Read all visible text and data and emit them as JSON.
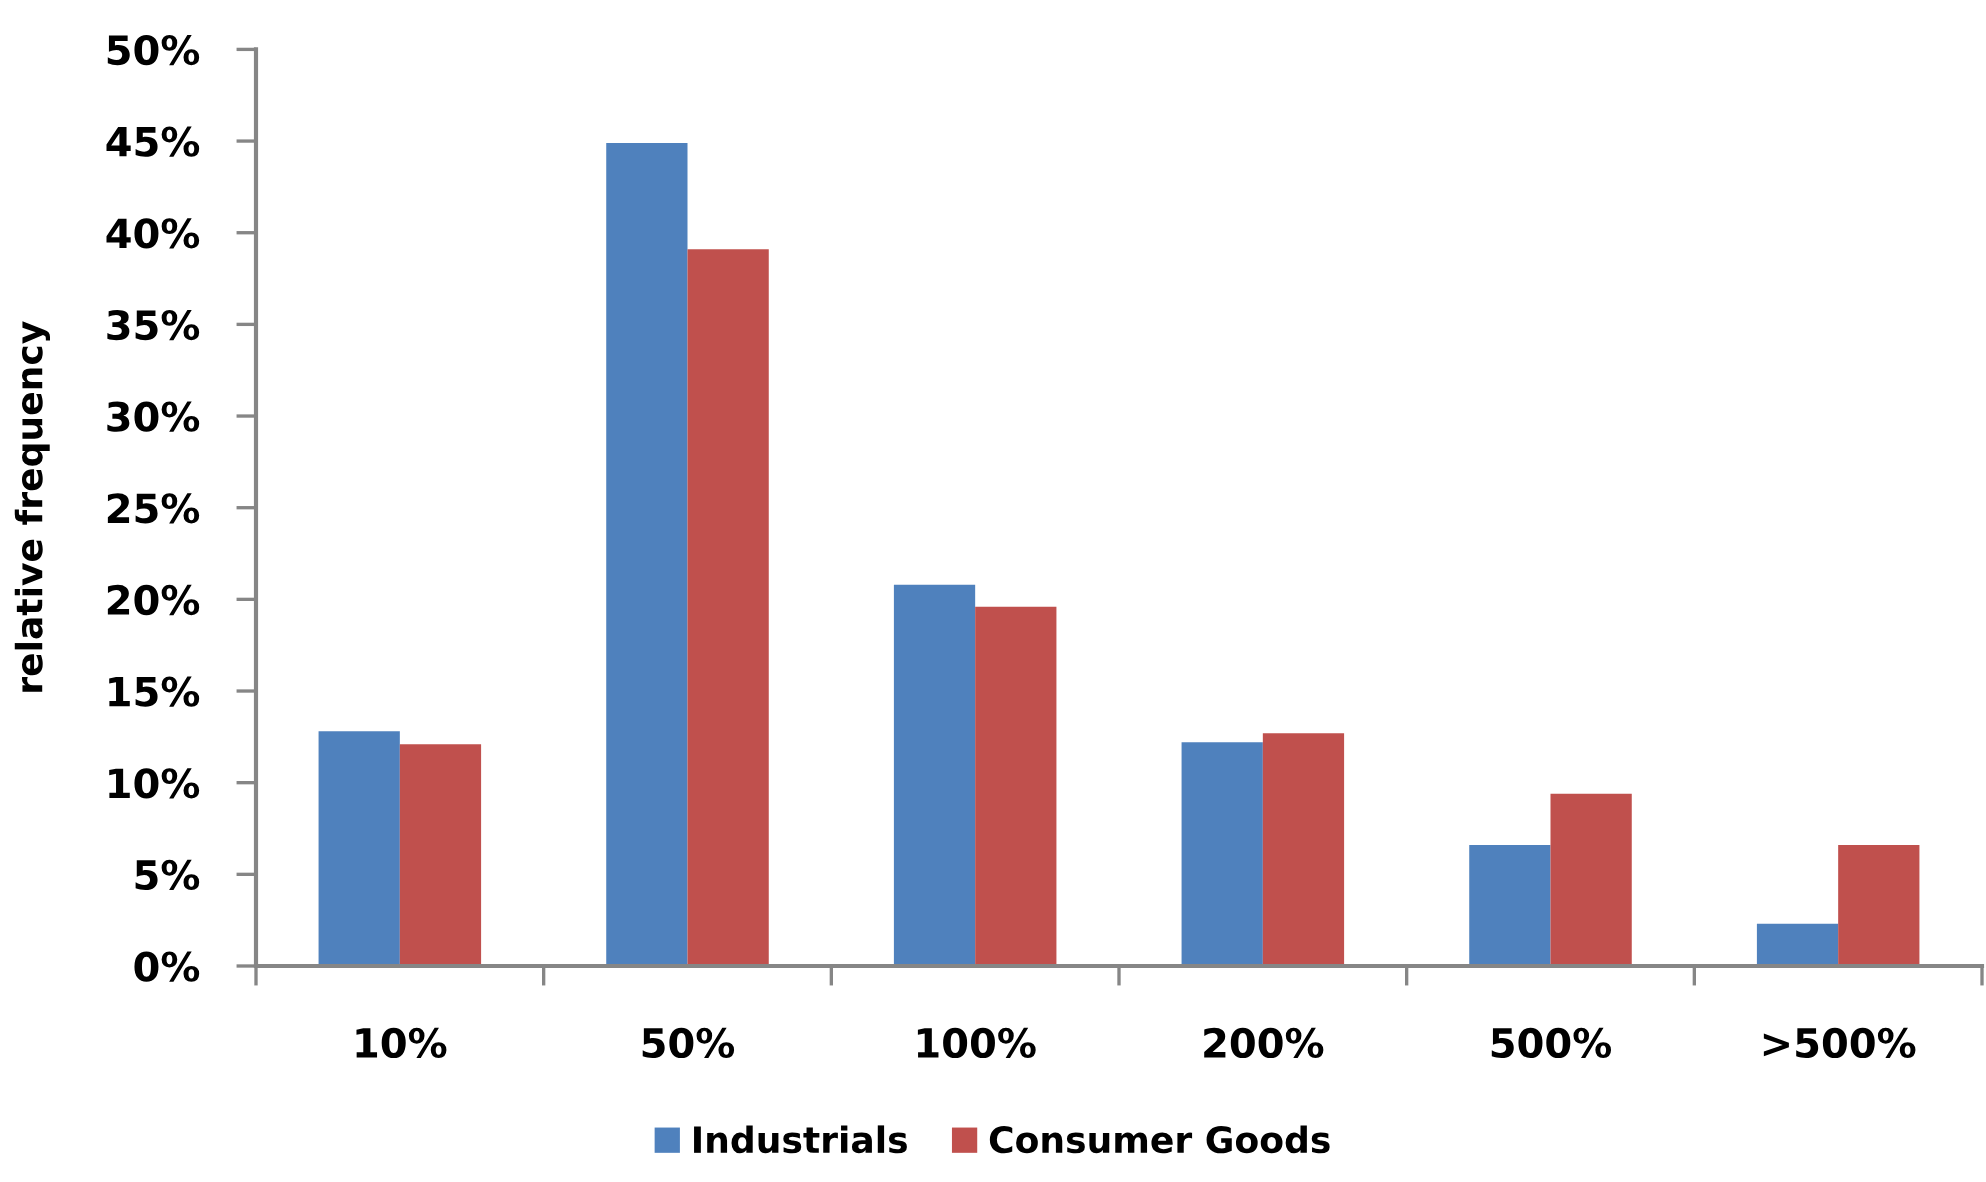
{
  "chart_data": {
    "type": "bar",
    "ylabel": "relative frequency",
    "categories": [
      "10%",
      "50%",
      "100%",
      "200%",
      "500%",
      ">500%"
    ],
    "series": [
      {
        "name": "Industrials",
        "color": "#4f81bd",
        "values": [
          12.8,
          44.9,
          20.8,
          12.2,
          6.6,
          2.3
        ]
      },
      {
        "name": "Consumer Goods",
        "color": "#c0504d",
        "values": [
          12.1,
          39.1,
          19.6,
          12.7,
          9.4,
          6.6
        ]
      }
    ],
    "ylim": [
      0,
      50
    ],
    "yticks": [
      {
        "value": 0,
        "label": "0%"
      },
      {
        "value": 5,
        "label": "5%"
      },
      {
        "value": 10,
        "label": "10%"
      },
      {
        "value": 15,
        "label": "15%"
      },
      {
        "value": 20,
        "label": "20%"
      },
      {
        "value": 25,
        "label": "25%"
      },
      {
        "value": 30,
        "label": "30%"
      },
      {
        "value": 35,
        "label": "35%"
      },
      {
        "value": 40,
        "label": "40%"
      },
      {
        "value": 45,
        "label": "45%"
      },
      {
        "value": 50,
        "label": "50%"
      }
    ],
    "grid": false,
    "legend": "bottom"
  }
}
